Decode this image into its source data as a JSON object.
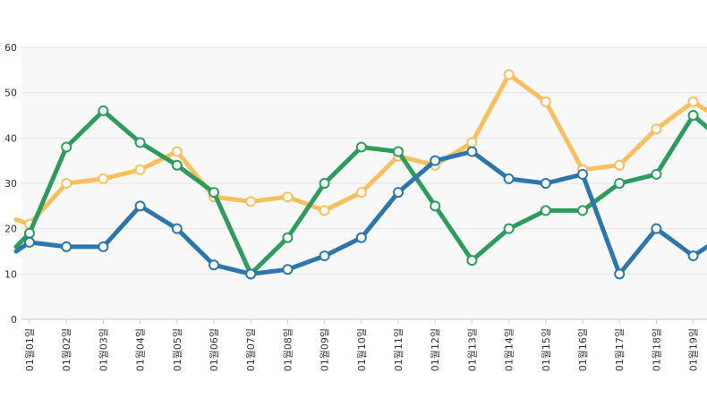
{
  "chart_data": {
    "type": "line",
    "categories": [
      "01월01일",
      "01월02일",
      "01월03일",
      "01월04일",
      "01월05일",
      "01월06일",
      "01월07일",
      "01월08일",
      "01월09일",
      "01월10일",
      "01월11일",
      "01월12일",
      "01월13일",
      "01월14일",
      "01월15일",
      "01월16일",
      "01월17일",
      "01월18일",
      "01월19일"
    ],
    "ylim": [
      0,
      60
    ],
    "yticks": [
      "0",
      "10",
      "20",
      "30",
      "40",
      "50",
      "60"
    ],
    "grid": true,
    "series": [
      {
        "color": "#fbbf5b",
        "start": 22,
        "end": 45,
        "values": [
          21,
          30,
          31,
          33,
          37,
          27,
          26,
          27,
          24,
          28,
          36,
          34,
          39,
          54,
          48,
          33,
          34,
          42,
          48
        ]
      },
      {
        "color": "#2a9d5c",
        "start": 16,
        "end": 41,
        "values": [
          19,
          38,
          46,
          39,
          34,
          28,
          10,
          18,
          30,
          38,
          37,
          25,
          13,
          20,
          24,
          24,
          30,
          32,
          45
        ]
      },
      {
        "color": "#2b76ad",
        "start": 15,
        "end": 17,
        "values": [
          17,
          16,
          16,
          25,
          20,
          12,
          10,
          11,
          14,
          18,
          28,
          35,
          37,
          31,
          30,
          32,
          10,
          20,
          14
        ]
      }
    ]
  }
}
